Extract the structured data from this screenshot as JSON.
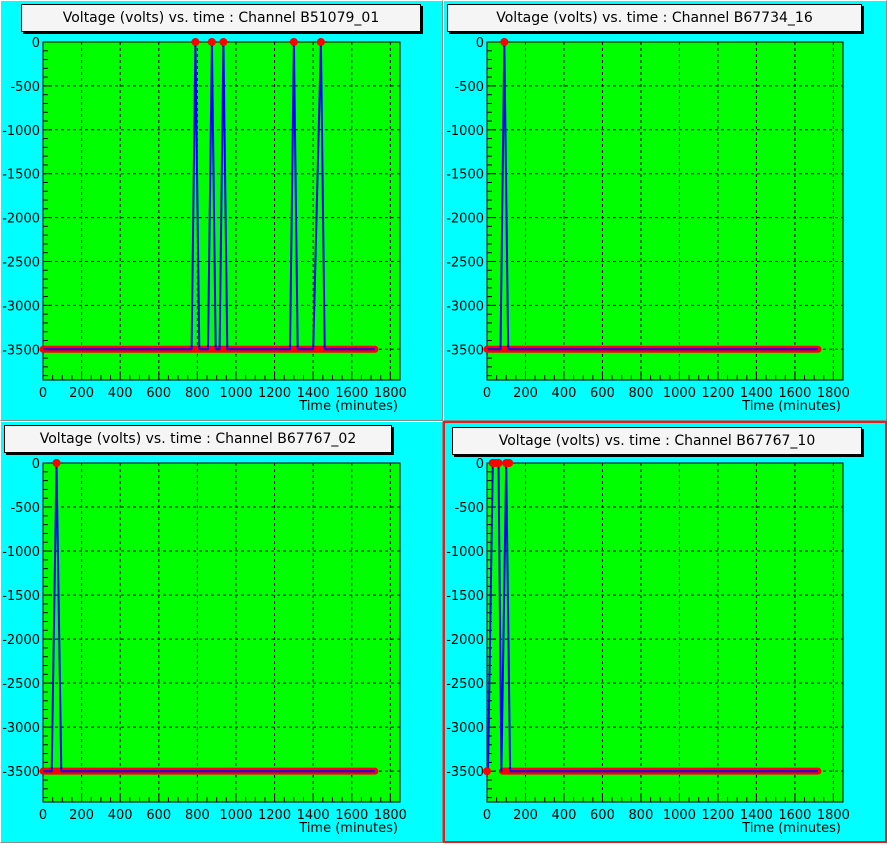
{
  "colors": {
    "pad_background": "#00ffff",
    "frame_background": "#00ff00",
    "line": "#0000ff",
    "marker": "#ff0000",
    "grid": "#000000",
    "active_border": "#e02020"
  },
  "chart_data": [
    {
      "type": "line",
      "title": "Voltage (volts) vs. time  : Channel B51079_01",
      "xlabel": "Time (minutes)",
      "ylabel": "",
      "xlim": [
        0,
        1850
      ],
      "ylim": [
        -3850,
        0
      ],
      "xticks": [
        "0",
        "200",
        "400",
        "600",
        "800",
        "1000",
        "1200",
        "1400",
        "1600",
        "1800"
      ],
      "yticks": [
        "0",
        "-500",
        "-1000",
        "-1500",
        "-2000",
        "-2500",
        "-3000",
        "-3500"
      ],
      "grid": true,
      "x": [
        0,
        770,
        790,
        810,
        855,
        875,
        895,
        915,
        935,
        955,
        1280,
        1300,
        1320,
        1400,
        1440,
        1460,
        1720
      ],
      "y": [
        -3500,
        -3500,
        0,
        -3500,
        -3500,
        0,
        -3500,
        -3500,
        0,
        -3500,
        -3500,
        0,
        -3500,
        -3500,
        0,
        -3500,
        -3500
      ],
      "markers": [
        [
          790,
          0
        ],
        [
          875,
          0
        ],
        [
          935,
          0
        ],
        [
          1300,
          0
        ],
        [
          1440,
          0
        ]
      ],
      "marker_band": [
        0,
        1720,
        -3500
      ]
    },
    {
      "type": "line",
      "title": "Voltage (volts) vs. time  : Channel B67734_16",
      "xlabel": "Time (minutes)",
      "ylabel": "",
      "xlim": [
        0,
        1850
      ],
      "ylim": [
        -3850,
        0
      ],
      "xticks": [
        "0",
        "200",
        "400",
        "600",
        "800",
        "1000",
        "1200",
        "1400",
        "1600",
        "1800"
      ],
      "yticks": [
        "0",
        "-500",
        "-1000",
        "-1500",
        "-2000",
        "-2500",
        "-3000",
        "-3500"
      ],
      "grid": true,
      "x": [
        0,
        70,
        90,
        110,
        1720
      ],
      "y": [
        -3500,
        -3500,
        0,
        -3500,
        -3500
      ],
      "markers": [
        [
          90,
          0
        ]
      ],
      "marker_band": [
        0,
        1720,
        -3500
      ]
    },
    {
      "type": "line",
      "title": "Voltage (volts) vs. time  : Channel B67767_02",
      "xlabel": "Time (minutes)",
      "ylabel": "",
      "xlim": [
        0,
        1850
      ],
      "ylim": [
        -3850,
        0
      ],
      "xticks": [
        "0",
        "200",
        "400",
        "600",
        "800",
        "1000",
        "1200",
        "1400",
        "1600",
        "1800"
      ],
      "yticks": [
        "0",
        "-500",
        "-1000",
        "-1500",
        "-2000",
        "-2500",
        "-3000",
        "-3500"
      ],
      "grid": true,
      "x": [
        0,
        45,
        70,
        95,
        1720
      ],
      "y": [
        -3500,
        -3500,
        0,
        -3500,
        -3500
      ],
      "markers": [
        [
          70,
          0
        ]
      ],
      "marker_band": [
        0,
        1720,
        -3500
      ]
    },
    {
      "type": "line",
      "title": "Voltage (volts) vs. time  : Channel B67767_10",
      "xlabel": "Time (minutes)",
      "ylabel": "",
      "xlim": [
        0,
        1850
      ],
      "ylim": [
        -3850,
        0
      ],
      "xticks": [
        "0",
        "200",
        "400",
        "600",
        "800",
        "1000",
        "1200",
        "1400",
        "1600",
        "1800"
      ],
      "yticks": [
        "0",
        "-500",
        "-1000",
        "-1500",
        "-2000",
        "-2500",
        "-3000",
        "-3500"
      ],
      "grid": true,
      "x": [
        0,
        5,
        30,
        60,
        75,
        100,
        120,
        1720
      ],
      "y": [
        -3500,
        -3500,
        0,
        0,
        -3500,
        0,
        -3500,
        -3500
      ],
      "markers": [
        [
          30,
          0
        ],
        [
          45,
          0
        ],
        [
          60,
          0
        ],
        [
          100,
          0
        ],
        [
          115,
          0
        ],
        [
          0,
          -3500
        ]
      ],
      "marker_band": [
        80,
        1720,
        -3500
      ]
    }
  ]
}
